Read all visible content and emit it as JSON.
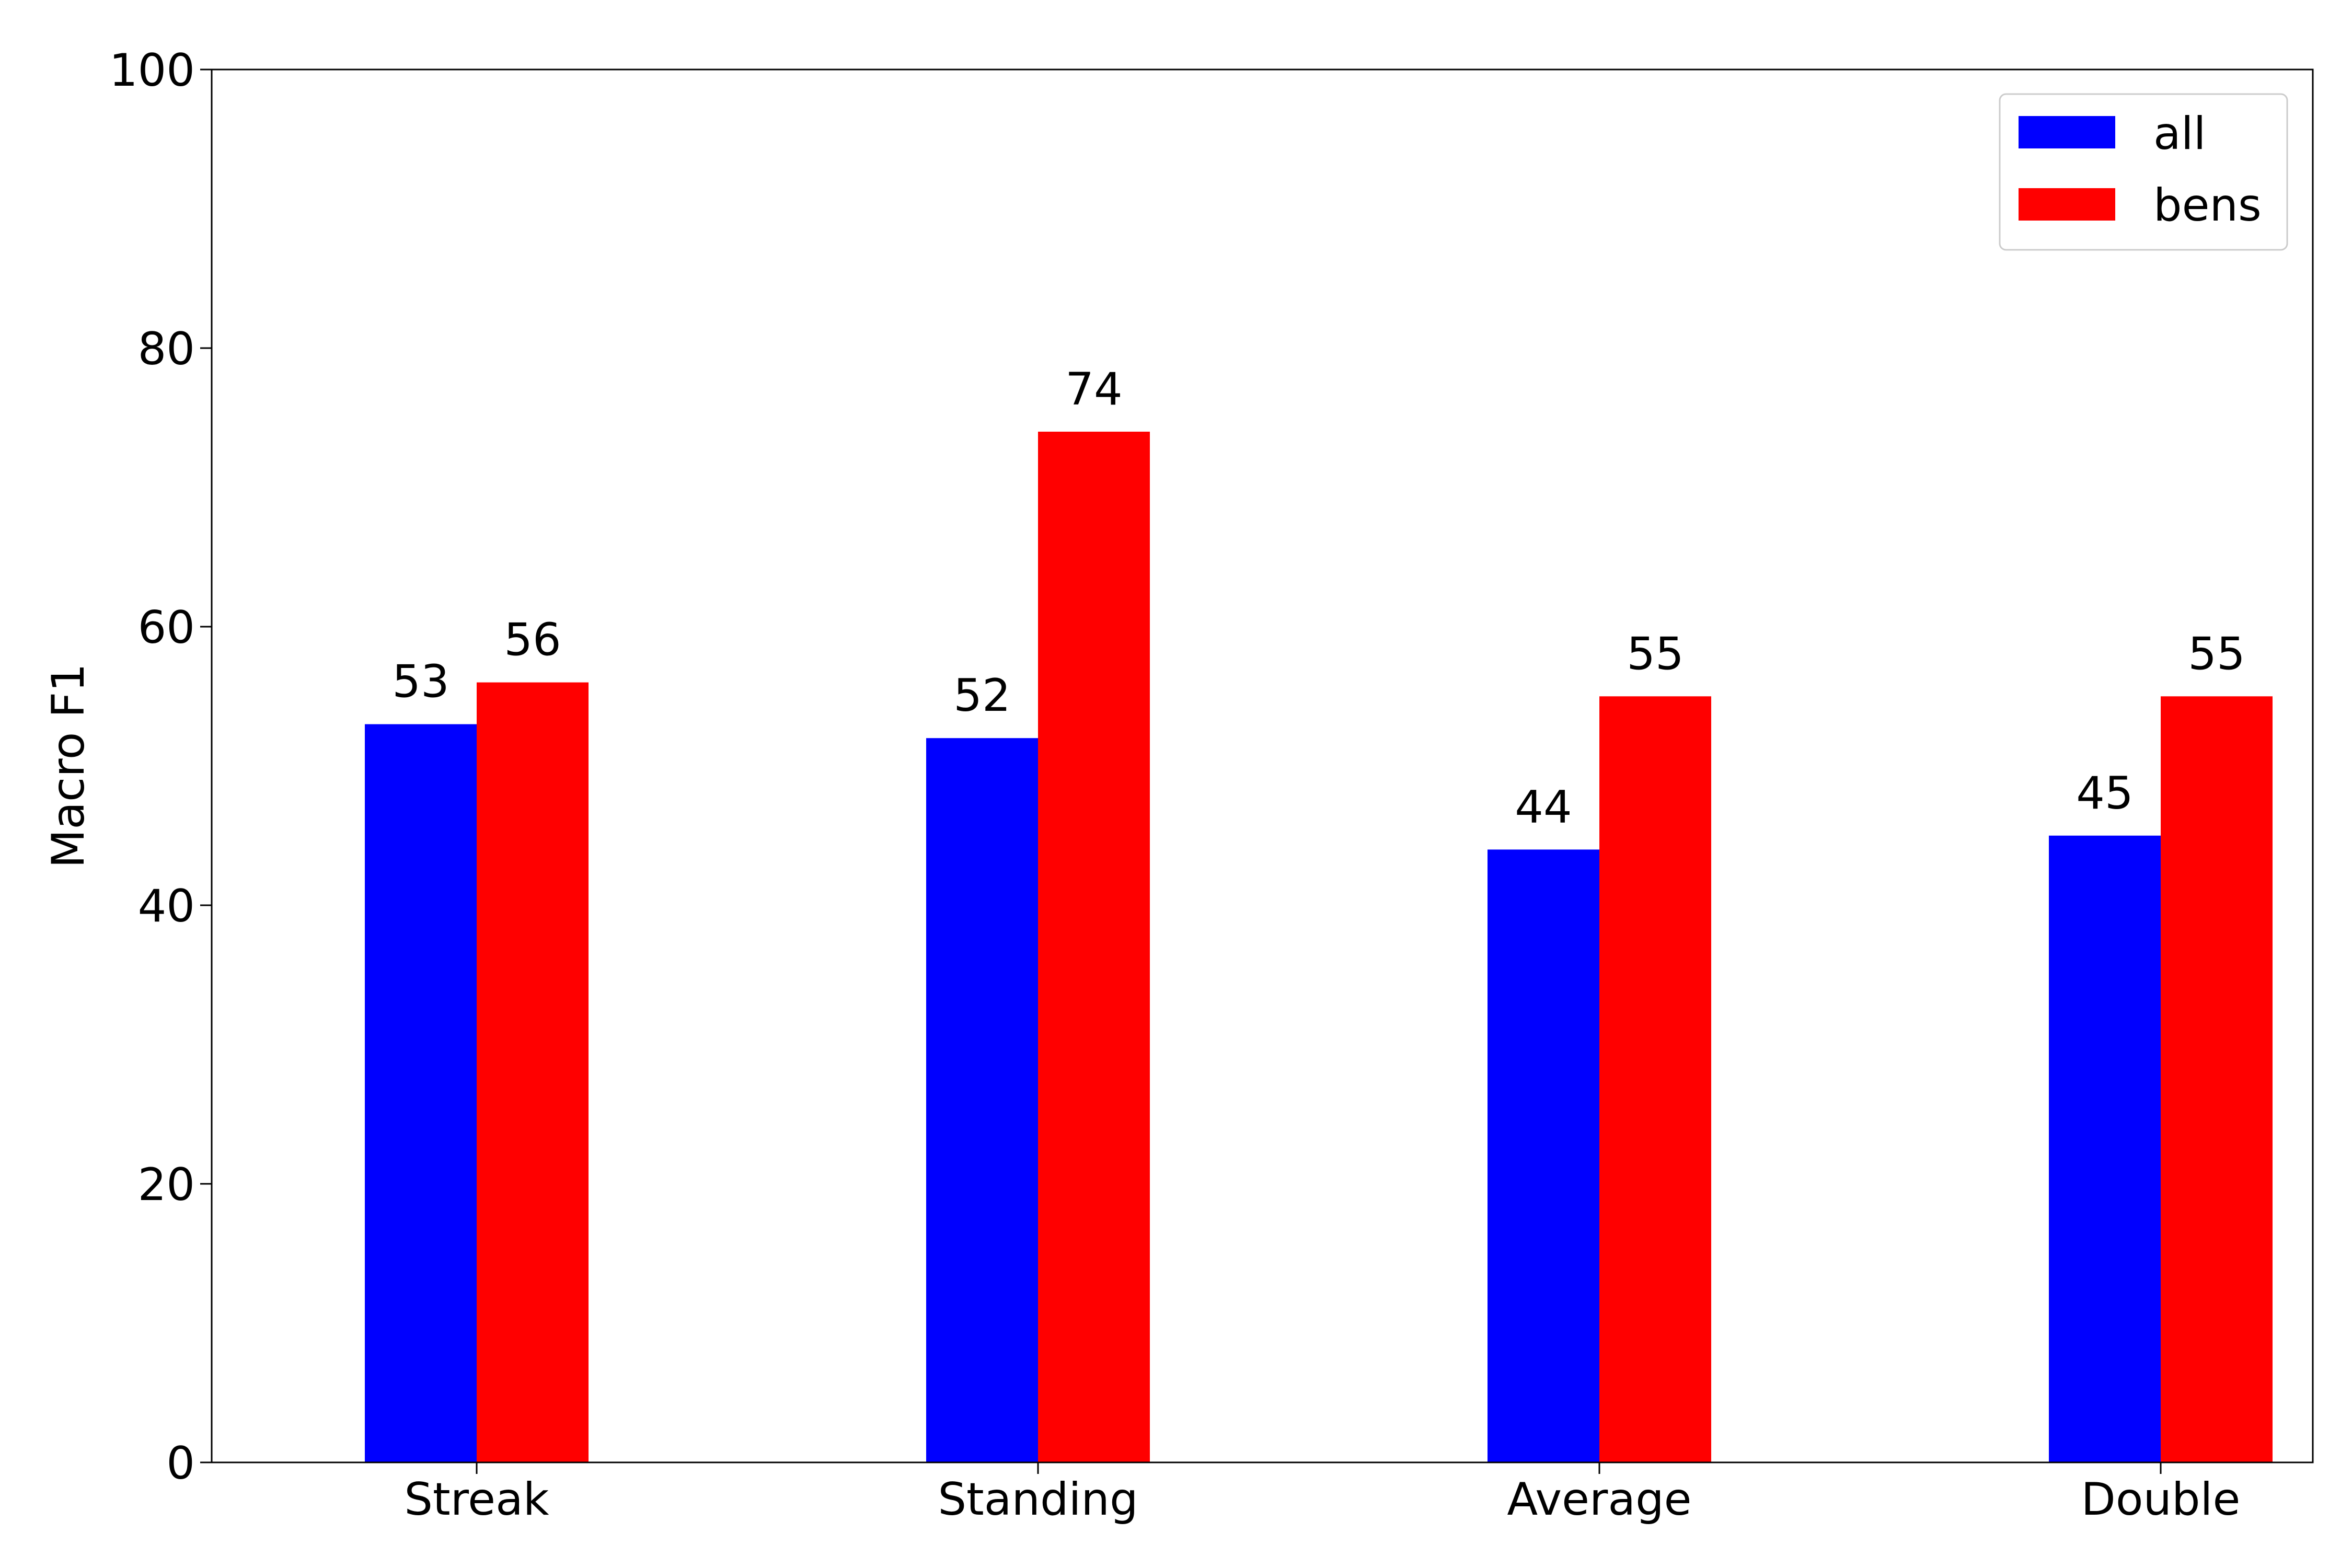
{
  "chart_data": {
    "type": "bar",
    "title": "",
    "xlabel": "",
    "ylabel": "Macro F1",
    "categories": [
      "Streak",
      "Standing",
      "Average",
      "Double"
    ],
    "series": [
      {
        "name": "all",
        "values": [
          53,
          52,
          44,
          45
        ],
        "color": "#0000ff"
      },
      {
        "name": "bens",
        "values": [
          56,
          74,
          55,
          55
        ],
        "color": "#ff0000"
      }
    ],
    "data_labels": [
      [
        "53",
        "52",
        "44",
        "45"
      ],
      [
        "56",
        "74",
        "55",
        "55"
      ]
    ],
    "ylim": [
      0,
      100
    ],
    "yticks": [
      "0",
      "20",
      "40",
      "60",
      "80",
      "100"
    ],
    "grid": false,
    "legend_position": "top-right"
  }
}
